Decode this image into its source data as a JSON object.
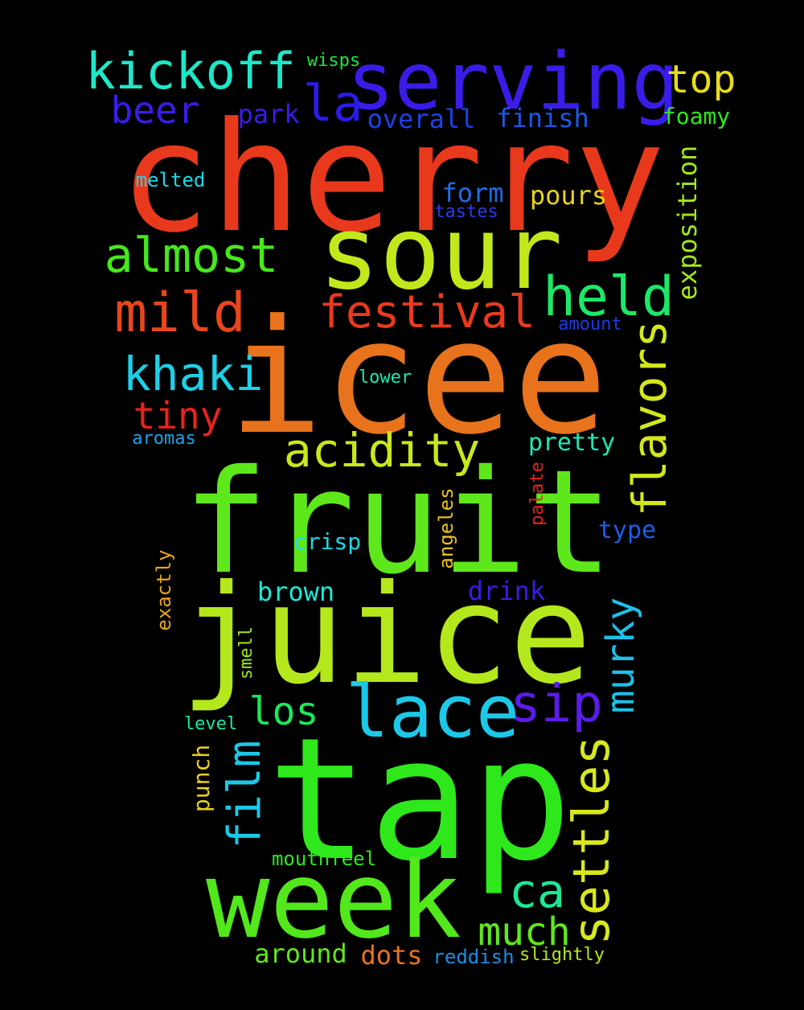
{
  "words": [
    {
      "text": "cherry",
      "color": "#e8391c"
    },
    {
      "text": "icee",
      "color": "#e8731c"
    },
    {
      "text": "fruit",
      "color": "#5ee81c"
    },
    {
      "text": "juice",
      "color": "#b4e81c"
    },
    {
      "text": "tap",
      "color": "#2ee81c"
    },
    {
      "text": "sour",
      "color": "#c2e81c"
    },
    {
      "text": "week",
      "color": "#52e81c"
    },
    {
      "text": "serving",
      "color": "#3a1ce8"
    },
    {
      "text": "lace",
      "color": "#1cc8e8"
    },
    {
      "text": "kickoff",
      "color": "#1ce8c8"
    },
    {
      "text": "almost",
      "color": "#46e81c"
    },
    {
      "text": "held",
      "color": "#1ce868"
    },
    {
      "text": "mild",
      "color": "#e8461c"
    },
    {
      "text": "festival",
      "color": "#e83a1c"
    },
    {
      "text": "khaki",
      "color": "#1cd0e8"
    },
    {
      "text": "acidity",
      "color": "#c8e81c"
    },
    {
      "text": "flavors",
      "color": "#d2e81c"
    },
    {
      "text": "settles",
      "color": "#d8e81c"
    },
    {
      "text": "sip",
      "color": "#5a1ce8"
    },
    {
      "text": "murky",
      "color": "#1cc0e8"
    },
    {
      "text": "top",
      "color": "#e8dc1c"
    },
    {
      "text": "beer",
      "color": "#3a1ce8"
    },
    {
      "text": "la",
      "color": "#2a1ce8"
    },
    {
      "text": "tiny",
      "color": "#e8231c"
    },
    {
      "text": "los",
      "color": "#1ce85a"
    },
    {
      "text": "film",
      "color": "#1cc8e8"
    },
    {
      "text": "ca",
      "color": "#1ce894"
    },
    {
      "text": "much",
      "color": "#5ee81c"
    },
    {
      "text": "park",
      "color": "#3a1ce8"
    },
    {
      "text": "overall",
      "color": "#1c42e8"
    },
    {
      "text": "finish",
      "color": "#1c58e8"
    },
    {
      "text": "foamy",
      "color": "#2ee81c"
    },
    {
      "text": "exposition",
      "color": "#a2e81c"
    },
    {
      "text": "form",
      "color": "#1c6ee8"
    },
    {
      "text": "pours",
      "color": "#e8d21c"
    },
    {
      "text": "tastes",
      "color": "#2a3ae8"
    },
    {
      "text": "melted",
      "color": "#1cd8e8"
    },
    {
      "text": "wisps",
      "color": "#1ce834"
    },
    {
      "text": "pretty",
      "color": "#1ce8b4"
    },
    {
      "text": "amount",
      "color": "#1c3ae8"
    },
    {
      "text": "lower",
      "color": "#1ce8b4"
    },
    {
      "text": "aromas",
      "color": "#1ca2e8"
    },
    {
      "text": "type",
      "color": "#1c5ee8"
    },
    {
      "text": "palate",
      "color": "#e8231c"
    },
    {
      "text": "angeles",
      "color": "#e8c21c"
    },
    {
      "text": "crisp",
      "color": "#1cd8e8"
    },
    {
      "text": "drink",
      "color": "#3a1ce8"
    },
    {
      "text": "exactly",
      "color": "#e8a81c"
    },
    {
      "text": "brown",
      "color": "#1ce8d8"
    },
    {
      "text": "smell",
      "color": "#a2e81c"
    },
    {
      "text": "level",
      "color": "#1ce8a2"
    },
    {
      "text": "punch",
      "color": "#e8d21c"
    },
    {
      "text": "mouthfeel",
      "color": "#2ee81c"
    },
    {
      "text": "around",
      "color": "#5ee81c"
    },
    {
      "text": "dots",
      "color": "#e8731c"
    },
    {
      "text": "reddish",
      "color": "#1c8ee8"
    },
    {
      "text": "slightly",
      "color": "#b4e81c"
    }
  ]
}
